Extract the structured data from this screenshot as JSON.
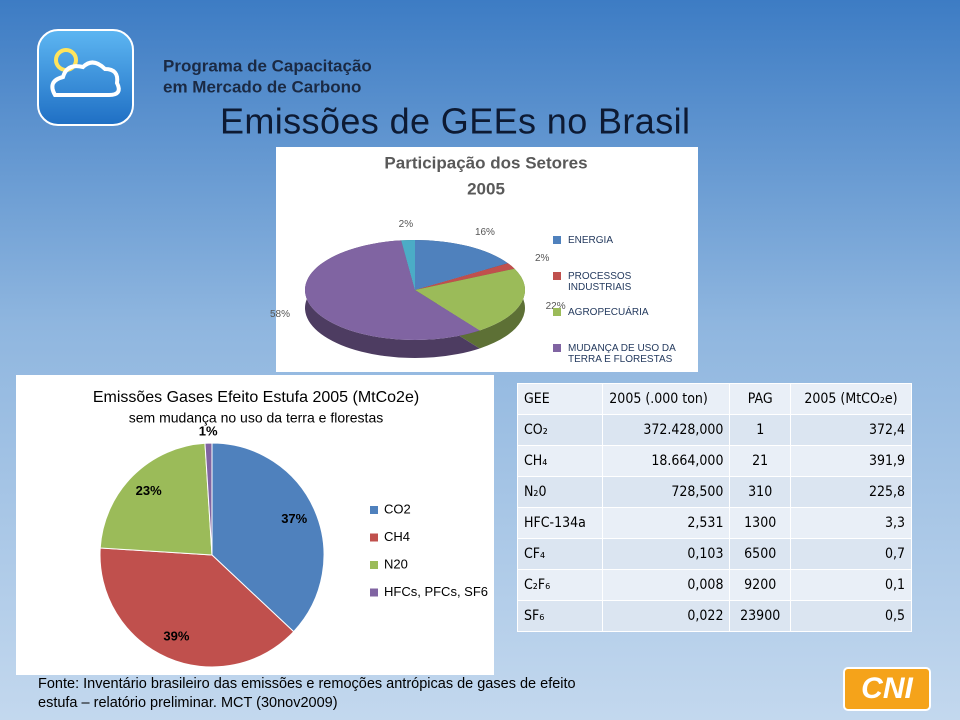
{
  "header": {
    "program_line1": "Programa de Capacitação",
    "program_line2": "em Mercado de Carbono",
    "title": "Emissões de GEEs no Brasil"
  },
  "chart_data": [
    {
      "type": "pie3d",
      "title": "Participação dos Setores",
      "subtitle": "2005",
      "categories": [
        "ENERGIA",
        "PROCESSOS INDUSTRIAIS",
        "AGROPECUÁRIA",
        "MUDANÇA DE USO DA TERRA E FLORESTAS",
        null
      ],
      "values": [
        16,
        2,
        22,
        58,
        2
      ],
      "value_labels": [
        "16%",
        "2%",
        "22%",
        "58%",
        "2%"
      ],
      "colors": [
        "#4f81bd",
        "#c0504d",
        "#9bbb59",
        "#8064a2",
        "#4bacc6"
      ],
      "legend": "right"
    },
    {
      "type": "pie",
      "title": "Emissões Gases Efeito Estufa 2005 (MtCo2e)",
      "subtitle": "sem mudança no uso da terra e florestas",
      "categories": [
        "CO2",
        "CH4",
        "N20",
        "HFCs, PFCs, SF6"
      ],
      "values": [
        37,
        39,
        23,
        1
      ],
      "value_labels": [
        "37%",
        "39%",
        "23%",
        "1%"
      ],
      "colors": [
        "#4f81bd",
        "#c0504d",
        "#9bbb59",
        "#8064a2"
      ],
      "legend": "right"
    }
  ],
  "table": {
    "header": [
      "GEE",
      "2005 (.000 ton)",
      "PAG",
      "2005 (MtCO₂e)"
    ],
    "rows": [
      [
        "CO₂",
        "372.428,000",
        "1",
        "372,4"
      ],
      [
        "CH₄",
        "18.664,000",
        "21",
        "391,9"
      ],
      [
        "N₂0",
        "728,500",
        "310",
        "225,8"
      ],
      [
        "HFC-134a",
        "2,531",
        "1300",
        "3,3"
      ],
      [
        "CF₄",
        "0,103",
        "6500",
        "0,7"
      ],
      [
        "C₂F₆",
        "0,008",
        "9200",
        "0,1"
      ],
      [
        "SF₆",
        "0,022",
        "23900",
        "0,5"
      ]
    ]
  },
  "footer": "Fonte: Inventário brasileiro das emissões e remoções antrópicas de gases de efeito estufa – relatório preliminar. MCT (30nov2009)",
  "logo_text": "CNI"
}
